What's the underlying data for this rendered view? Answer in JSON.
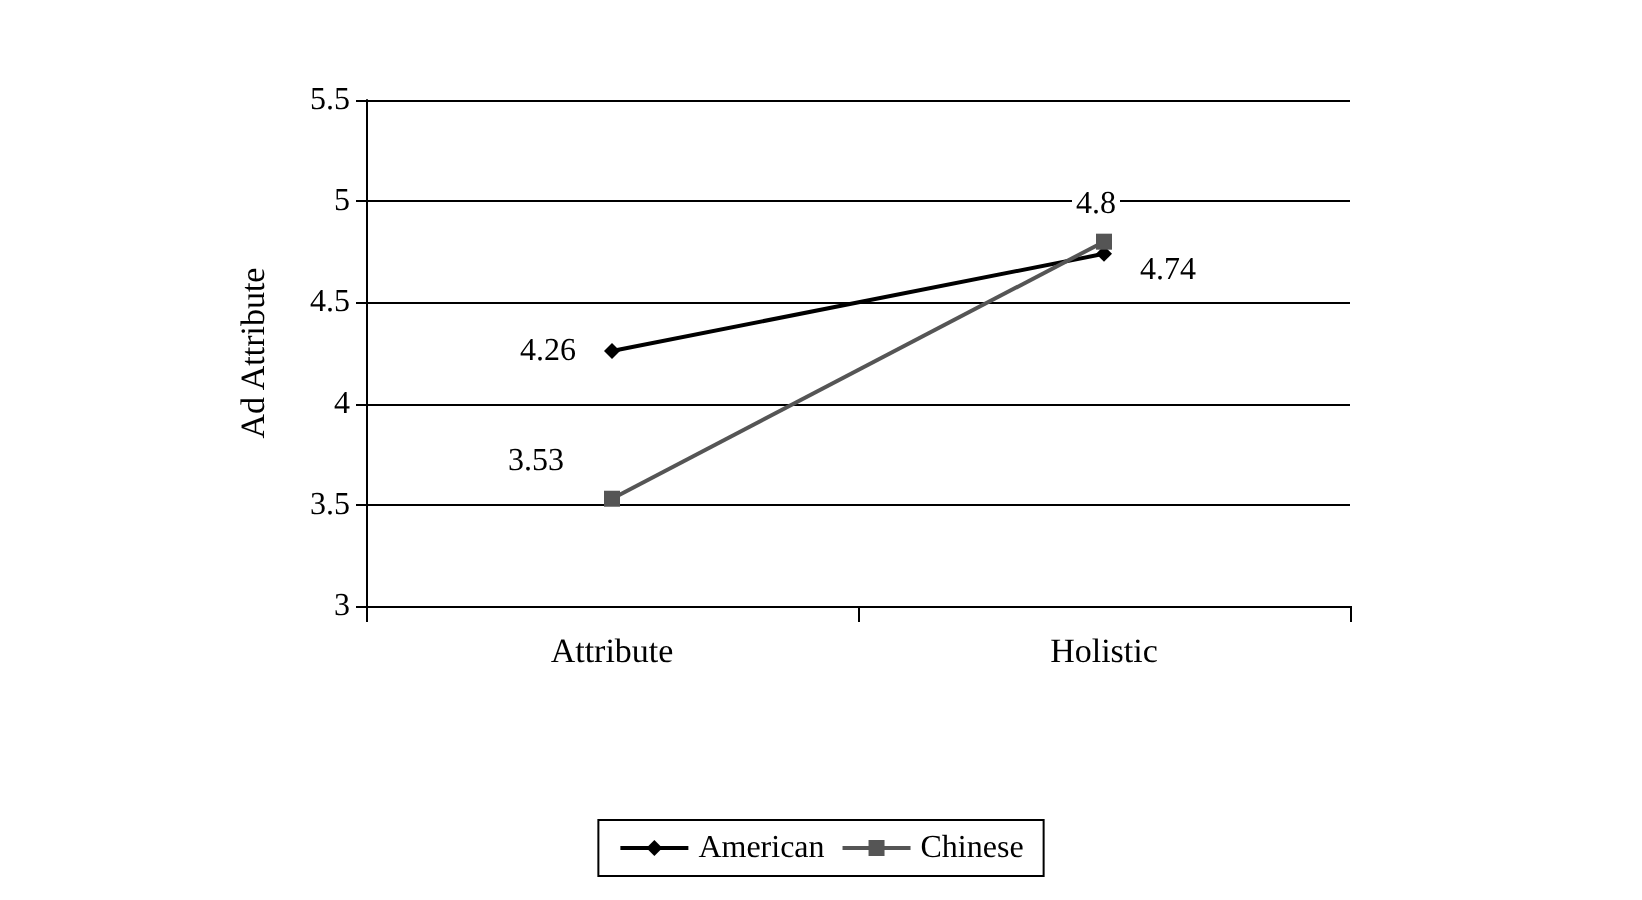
{
  "chart_data": {
    "type": "line",
    "ylabel": "Ad Attribute",
    "categories": [
      "Attribute",
      "Holistic"
    ],
    "series": [
      {
        "name": "American",
        "color": "#000000",
        "values": [
          4.26,
          4.74
        ],
        "marker": "diamond"
      },
      {
        "name": "Chinese",
        "color": "#555555",
        "values": [
          3.53,
          4.8
        ],
        "marker": "square"
      }
    ],
    "ylim": [
      3,
      5.5
    ],
    "yticks": [
      3,
      3.5,
      4,
      4.5,
      5,
      5.5
    ],
    "grid": "y",
    "legend": "bottom",
    "data_labels": true,
    "line_style": "solid"
  }
}
